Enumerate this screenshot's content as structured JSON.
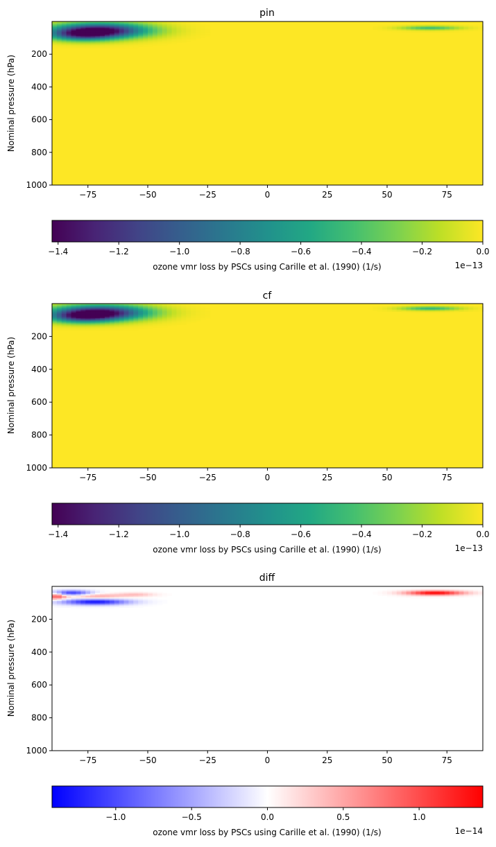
{
  "chart_data": [
    {
      "type": "heatmap",
      "title": "pin",
      "xlabel": "",
      "ylabel": "Nominal pressure (hPa)",
      "xlim": [
        -90,
        90
      ],
      "ylim": [
        1000,
        0
      ],
      "xticks": [
        "−75",
        "−50",
        "−25",
        "0",
        "25",
        "50",
        "75"
      ],
      "xtick_values": [
        -75,
        -50,
        -25,
        0,
        25,
        50,
        75
      ],
      "yticks": [
        "200",
        "400",
        "600",
        "800",
        "1000"
      ],
      "ytick_values": [
        200,
        400,
        600,
        800,
        1000
      ],
      "colormap": "viridis",
      "colorbar": {
        "label": "ozone vmr loss by PSCs using Carille et al. (1990) (1/s)",
        "range": [
          -1.42,
          0.0
        ],
        "ticks": [
          "−1.4",
          "−1.2",
          "−1.0",
          "−0.8",
          "−0.6",
          "−0.4",
          "−0.2",
          "0.0"
        ],
        "tick_values": [
          -1.4,
          -1.2,
          -1.0,
          -0.8,
          -0.6,
          -0.4,
          -0.2,
          0.0
        ],
        "offset_text": "1e−13"
      },
      "features": [
        {
          "lat": -70,
          "pressure": 55,
          "lat_width": 20,
          "p_width": 45,
          "value": -1.42
        },
        {
          "lat": -78,
          "pressure": 85,
          "lat_width": 14,
          "p_width": 35,
          "value": -0.7
        },
        {
          "lat": 68,
          "pressure": 40,
          "lat_width": 12,
          "p_width": 12,
          "value": -0.45
        }
      ]
    },
    {
      "type": "heatmap",
      "title": "cf",
      "xlabel": "",
      "ylabel": "Nominal pressure (hPa)",
      "xlim": [
        -90,
        90
      ],
      "ylim": [
        1000,
        0
      ],
      "xticks": [
        "−75",
        "−50",
        "−25",
        "0",
        "25",
        "50",
        "75"
      ],
      "xtick_values": [
        -75,
        -50,
        -25,
        0,
        25,
        50,
        75
      ],
      "yticks": [
        "200",
        "400",
        "600",
        "800",
        "1000"
      ],
      "ytick_values": [
        200,
        400,
        600,
        800,
        1000
      ],
      "colormap": "viridis",
      "colorbar": {
        "label": "ozone vmr loss by PSCs using Carille et al. (1990) (1/s)",
        "range": [
          -1.42,
          0.0
        ],
        "ticks": [
          "−1.4",
          "−1.2",
          "−1.0",
          "−0.8",
          "−0.6",
          "−0.4",
          "−0.2",
          "0.0"
        ],
        "tick_values": [
          -1.4,
          -1.2,
          -1.0,
          -0.8,
          -0.6,
          -0.4,
          -0.2,
          0.0
        ],
        "offset_text": "1e−13"
      },
      "features": [
        {
          "lat": -70,
          "pressure": 55,
          "lat_width": 20,
          "p_width": 45,
          "value": -1.42
        },
        {
          "lat": -78,
          "pressure": 85,
          "lat_width": 14,
          "p_width": 35,
          "value": -0.7
        },
        {
          "lat": 68,
          "pressure": 30,
          "lat_width": 12,
          "p_width": 12,
          "value": -0.5
        }
      ]
    },
    {
      "type": "heatmap",
      "title": "diff",
      "xlabel": "",
      "ylabel": "Nominal pressure (hPa)",
      "xlim": [
        -90,
        90
      ],
      "ylim": [
        1000,
        0
      ],
      "xticks": [
        "−75",
        "−50",
        "−25",
        "0",
        "25",
        "50",
        "75"
      ],
      "xtick_values": [
        -75,
        -50,
        -25,
        0,
        25,
        50,
        75
      ],
      "yticks": [
        "200",
        "400",
        "600",
        "800",
        "1000"
      ],
      "ytick_values": [
        200,
        400,
        600,
        800,
        1000
      ],
      "colormap": "bwr",
      "colorbar": {
        "label": "ozone vmr loss by PSCs using Carille et al. (1990) (1/s)",
        "range": [
          -1.42,
          1.42
        ],
        "ticks": [
          "−1.0",
          "−0.5",
          "0.0",
          "0.5",
          "1.0"
        ],
        "tick_values": [
          -1.0,
          -0.5,
          0.0,
          0.5,
          1.0
        ],
        "offset_text": "1e−14"
      },
      "features": [
        {
          "lat": -72,
          "pressure": 95,
          "lat_width": 14,
          "p_width": 18,
          "value": -1.3
        },
        {
          "lat": -82,
          "pressure": 40,
          "lat_width": 8,
          "p_width": 16,
          "value": -1.1
        },
        {
          "lat": -72,
          "pressure": 60,
          "lat_width": 12,
          "p_width": 14,
          "value": 0.5
        },
        {
          "lat": -88,
          "pressure": 60,
          "lat_width": 4,
          "p_width": 20,
          "value": 0.9
        },
        {
          "lat": -55,
          "pressure": 50,
          "lat_width": 8,
          "p_width": 12,
          "value": 0.35
        },
        {
          "lat": 70,
          "pressure": 40,
          "lat_width": 12,
          "p_width": 14,
          "value": 1.42
        }
      ]
    }
  ]
}
